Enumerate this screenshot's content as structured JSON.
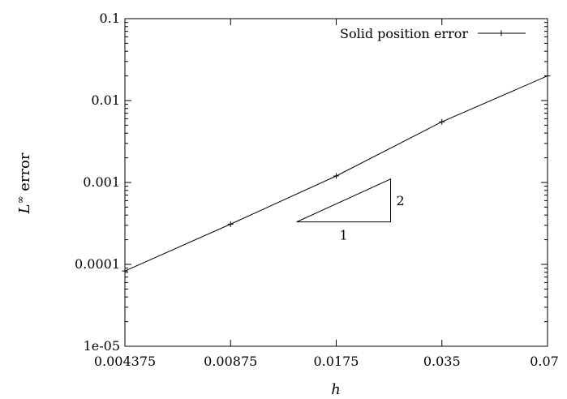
{
  "chart_data": {
    "type": "line",
    "xscale": "log",
    "yscale": "log",
    "xlim": [
      0.004375,
      0.07
    ],
    "ylim": [
      1e-05,
      0.1
    ],
    "xticks": [
      {
        "value": 0.004375,
        "label": "0.004375"
      },
      {
        "value": 0.00875,
        "label": "0.00875"
      },
      {
        "value": 0.0175,
        "label": "0.0175"
      },
      {
        "value": 0.035,
        "label": "0.035"
      },
      {
        "value": 0.07,
        "label": "0.07"
      }
    ],
    "yticks": [
      {
        "value": 1e-05,
        "label": "1e-05"
      },
      {
        "value": 0.0001,
        "label": "0.0001"
      },
      {
        "value": 0.001,
        "label": "0.001"
      },
      {
        "value": 0.01,
        "label": "0.01"
      },
      {
        "value": 0.1,
        "label": "0.1"
      }
    ],
    "xlabel": "h",
    "ylabel_main": "L",
    "ylabel_sup": "∞",
    "ylabel_rest": " error",
    "grid": false,
    "legend_position": "top-right",
    "series": [
      {
        "name": "Solid position error",
        "marker": "plus",
        "color": "#000000",
        "x": [
          0.004375,
          0.00875,
          0.0175,
          0.035,
          0.07
        ],
        "y": [
          8.3e-05,
          0.00031,
          0.0012,
          0.0055,
          0.02
        ]
      }
    ],
    "slope_triangle": {
      "x0": 0.0135,
      "x1": 0.025,
      "y0": 0.00033,
      "y1": 0.0011,
      "run_label": "1",
      "rise_label": "2"
    }
  }
}
